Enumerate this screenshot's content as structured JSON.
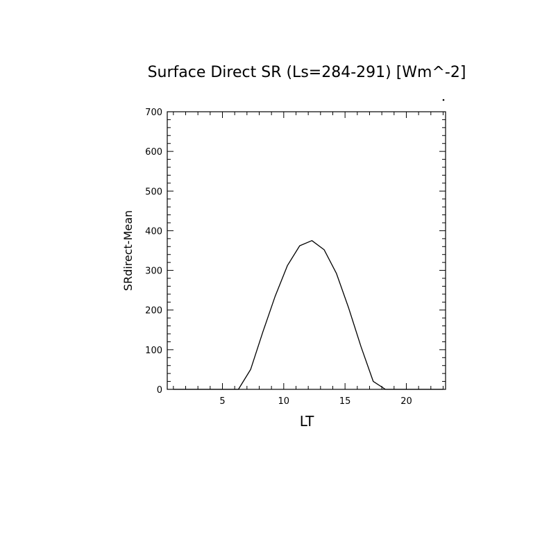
{
  "chart_data": {
    "type": "line",
    "title": "Surface Direct SR (Ls=284-291) [Wm^-2]",
    "xlabel": "LT",
    "ylabel": "SRdirect-Mean",
    "xlim": [
      0.5,
      23.2
    ],
    "ylim": [
      0,
      700
    ],
    "x_ticks": [
      5,
      10,
      15,
      20
    ],
    "y_ticks": [
      0,
      100,
      200,
      300,
      400,
      500,
      600,
      700
    ],
    "grid": false,
    "series": [
      {
        "x": [
          1,
          2,
          3,
          4,
          5,
          6,
          6.3,
          7.3,
          8.3,
          9.3,
          10.3,
          11.3,
          12.3,
          13.3,
          14.3,
          15.3,
          16.3,
          17.3,
          18.3,
          19,
          20,
          21,
          22,
          23
        ],
        "values": [
          0,
          0,
          0,
          0,
          0,
          0,
          0,
          50,
          145,
          235,
          312,
          362,
          375,
          352,
          292,
          205,
          108,
          20,
          0,
          0,
          0,
          0,
          0,
          0
        ]
      }
    ]
  }
}
